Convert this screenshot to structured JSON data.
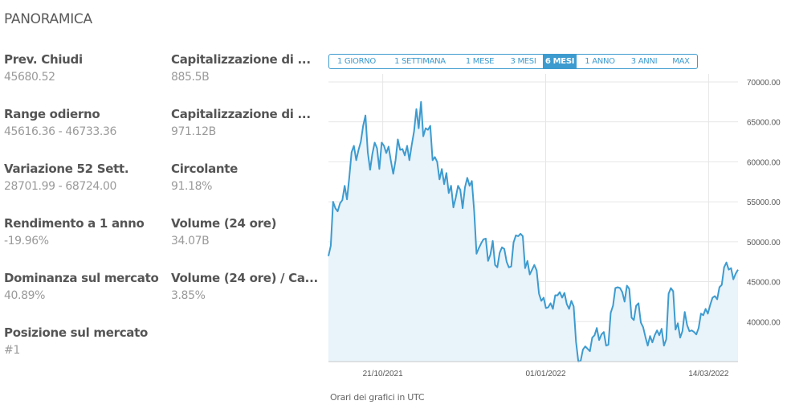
{
  "section_title": "PANORAMICA",
  "stats": [
    {
      "label": "Prev. Chiudi",
      "value": "45680.52"
    },
    {
      "label": "Capitalizzazione di ...",
      "value": "885.5B"
    },
    {
      "label": "Range odierno",
      "value": "45616.36 - 46733.36"
    },
    {
      "label": "Capitalizzazione di ...",
      "value": "971.12B"
    },
    {
      "label": "Variazione 52 Sett.",
      "value": "28701.99 - 68724.00"
    },
    {
      "label": "Circolante",
      "value": "91.18%"
    },
    {
      "label": "Rendimento a 1 anno",
      "value": "-19.96%"
    },
    {
      "label": "Volume (24 ore)",
      "value": "34.07B"
    },
    {
      "label": "Dominanza sul mercato",
      "value": "40.89%"
    },
    {
      "label": "Volume (24 ore) / Ca...",
      "value": "3.85%"
    },
    {
      "label": "Posizione sul mercato",
      "value": "#1"
    }
  ],
  "range_tabs": [
    "1 GIORNO",
    "1 SETTIMANA",
    "1 MESE",
    "3 MESI",
    "6 MESI",
    "1 ANNO",
    "3 ANNI",
    "MAX"
  ],
  "active_range": "6 MESI",
  "footnote": "Orari dei grafici in UTC",
  "colors": {
    "accent": "#3d9bcf",
    "area_fill": "#e8f3fa",
    "grid": "#e6e6e6"
  },
  "chart_data": {
    "type": "area",
    "ylim": [
      35000,
      71000
    ],
    "yticks": [
      "70000.00",
      "65000.00",
      "60000.00",
      "55000.00",
      "50000.00",
      "45000.00",
      "40000.00"
    ],
    "ytick_values": [
      70000,
      65000,
      60000,
      55000,
      50000,
      45000,
      40000
    ],
    "xticks": [
      "21/10/2021",
      "01/01/2022",
      "14/03/2022"
    ],
    "xtick_days": [
      24,
      96,
      168
    ],
    "x_start": "2021-09-27",
    "x_end": "2022-03-27",
    "values": [
      48200,
      49500,
      55000,
      54200,
      53800,
      54800,
      55200,
      57000,
      55300,
      58000,
      61200,
      62000,
      60200,
      61500,
      62500,
      64500,
      65800,
      61200,
      59000,
      61000,
      62400,
      61700,
      59100,
      62400,
      62000,
      61100,
      61900,
      60100,
      58500,
      60200,
      62800,
      61500,
      61600,
      60800,
      62000,
      60200,
      62100,
      63800,
      66600,
      64200,
      67500,
      63200,
      64200,
      64000,
      64500,
      60200,
      60600,
      60000,
      57800,
      59100,
      57200,
      58600,
      56100,
      57000,
      54300,
      55500,
      57000,
      56500,
      54200,
      56800,
      58000,
      57000,
      57600,
      53800,
      48500,
      49200,
      49800,
      50300,
      50400,
      47600,
      48400,
      50100,
      47100,
      46800,
      48600,
      49300,
      49100,
      47500,
      46800,
      46900,
      49900,
      50800,
      50700,
      51000,
      50700,
      46700,
      47600,
      45900,
      46500,
      47100,
      46400,
      43500,
      42600,
      43000,
      41700,
      41800,
      42300,
      41600,
      43300,
      43300,
      43700,
      43000,
      43600,
      42200,
      41600,
      42600,
      41900,
      37500,
      35000,
      35100,
      36500,
      36900,
      36600,
      36300,
      38000,
      38300,
      39200,
      37700,
      38400,
      38700,
      37000,
      37100,
      41100,
      42000,
      44200,
      44300,
      44200,
      43700,
      42500,
      44500,
      44100,
      40500,
      40200,
      42000,
      42300,
      39900,
      39300,
      38100,
      37000,
      38200,
      37400,
      38300,
      38900,
      38300,
      39100,
      37000,
      37800,
      43500,
      44200,
      43800,
      39000,
      39800,
      38000,
      38800,
      41200,
      39600,
      38800,
      38900,
      38700,
      38400,
      39200,
      41000,
      40800,
      41600,
      41000,
      42100,
      43000,
      43200,
      42800,
      44300,
      44600,
      46800,
      47400,
      46500,
      46700,
      45300,
      46000,
      46500
    ]
  }
}
